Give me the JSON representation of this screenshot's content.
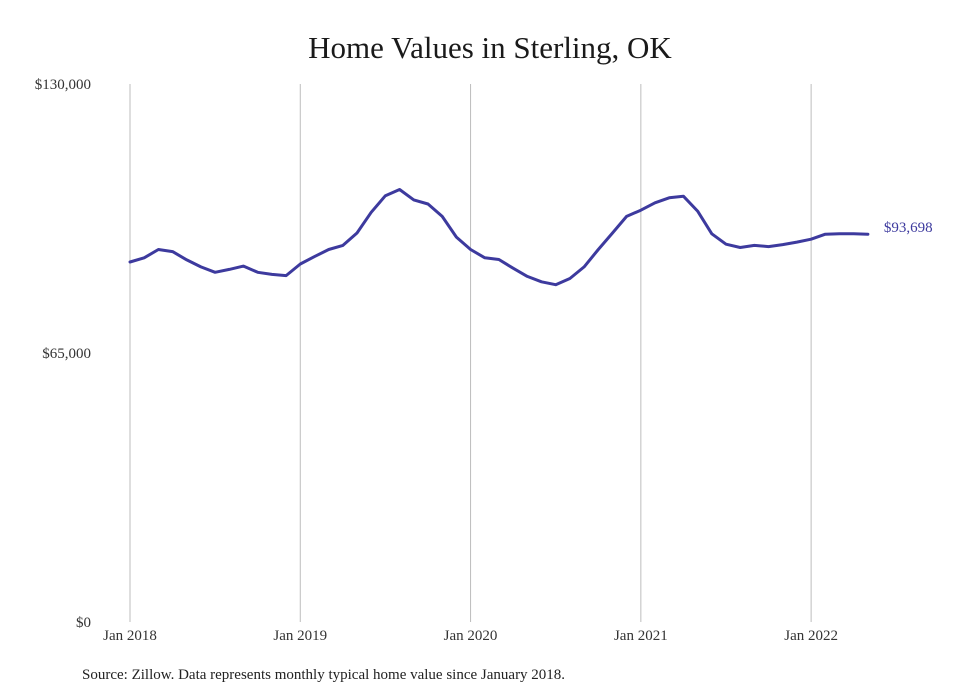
{
  "chart_data": {
    "type": "line",
    "title": "Home Values in Sterling, OK",
    "xlabel": "",
    "ylabel": "",
    "ylim": [
      0,
      130000
    ],
    "y_ticks": [
      {
        "value": 0,
        "label": "$0"
      },
      {
        "value": 65000,
        "label": "$65,000"
      },
      {
        "value": 130000,
        "label": "$130,000"
      }
    ],
    "x_ticks": [
      {
        "value": "2018-01",
        "label": "Jan 2018"
      },
      {
        "value": "2019-01",
        "label": "Jan 2019"
      },
      {
        "value": "2020-01",
        "label": "Jan 2020"
      },
      {
        "value": "2021-01",
        "label": "Jan 2021"
      },
      {
        "value": "2022-01",
        "label": "Jan 2022"
      }
    ],
    "grid": "vertical",
    "line_color": "#3d3a9e",
    "end_label": "$93,698",
    "x": [
      "2018-01",
      "2018-02",
      "2018-03",
      "2018-04",
      "2018-05",
      "2018-06",
      "2018-07",
      "2018-08",
      "2018-09",
      "2018-10",
      "2018-11",
      "2018-12",
      "2019-01",
      "2019-02",
      "2019-03",
      "2019-04",
      "2019-05",
      "2019-06",
      "2019-07",
      "2019-08",
      "2019-09",
      "2019-10",
      "2019-11",
      "2019-12",
      "2020-01",
      "2020-02",
      "2020-03",
      "2020-04",
      "2020-05",
      "2020-06",
      "2020-07",
      "2020-08",
      "2020-09",
      "2020-10",
      "2020-11",
      "2020-12",
      "2021-01",
      "2021-02",
      "2021-03",
      "2021-04",
      "2021-05",
      "2021-06",
      "2021-07",
      "2021-08",
      "2021-09",
      "2021-10",
      "2021-11",
      "2021-12",
      "2022-01",
      "2022-02",
      "2022-03",
      "2022-04",
      "2022-05"
    ],
    "series": [
      {
        "values": [
          87000,
          88000,
          90000,
          89500,
          87500,
          85800,
          84500,
          85200,
          86000,
          84500,
          84000,
          83700,
          86500,
          88300,
          90000,
          91000,
          94000,
          99000,
          103000,
          104500,
          102000,
          101000,
          98000,
          93000,
          90000,
          88000,
          87600,
          85500,
          83500,
          82200,
          81500,
          83000,
          85800,
          90000,
          94000,
          98000,
          99500,
          101300,
          102500,
          102900,
          99300,
          93800,
          91300,
          90500,
          91000,
          90700,
          91200,
          91800,
          92500,
          93700,
          93800,
          93800,
          93698
        ]
      }
    ]
  },
  "source": "Source: Zillow. Data represents monthly typical home value since January 2018."
}
